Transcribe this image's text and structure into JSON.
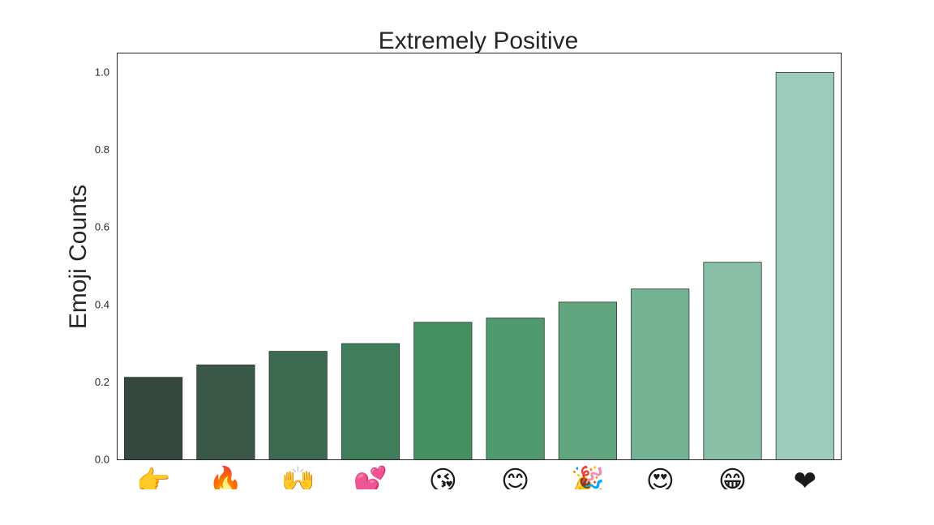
{
  "chart_data": {
    "type": "bar",
    "title": "Extremely Positive",
    "xlabel": "",
    "ylabel": "Emoji Counts",
    "ylim": [
      0,
      1.05
    ],
    "yticks": [
      "0.0",
      "0.2",
      "0.4",
      "0.6",
      "0.8",
      "1.0"
    ],
    "categories": [
      "👉",
      "🔥",
      "🙌",
      "💕",
      "😘",
      "😊",
      "🎉",
      "😍",
      "😁",
      "❤"
    ],
    "category_icons": [
      "point-right-icon",
      "fire-icon",
      "raised-hands-icon",
      "two-hearts-icon",
      "kissing-face-icon",
      "smiling-face-icon",
      "party-popper-icon",
      "heart-eyes-icon",
      "grinning-face-icon",
      "red-heart-icon"
    ],
    "values": [
      0.213,
      0.245,
      0.28,
      0.3,
      0.355,
      0.366,
      0.407,
      0.441,
      0.51,
      1.0
    ],
    "colors": [
      "#35483d",
      "#3a5847",
      "#3c6a51",
      "#3f7e5a",
      "#44905f",
      "#509b6e",
      "#62a680",
      "#74b294",
      "#89bfa7",
      "#9dccbc"
    ],
    "grid": false
  }
}
